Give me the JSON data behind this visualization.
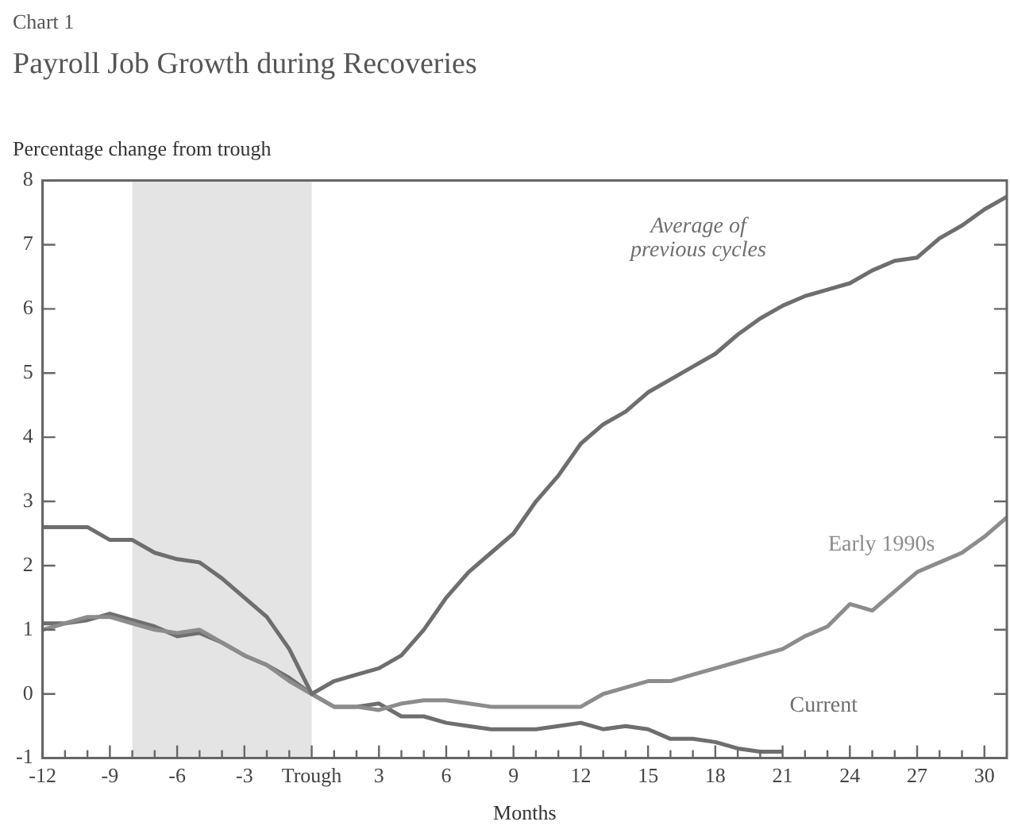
{
  "chart_data": {
    "type": "line",
    "title": "Payroll Job Growth during Recoveries",
    "annotations": [
      "Chart 1"
    ],
    "ylabel": "Percentage change from trough",
    "xlabel": "Months",
    "x": [
      -12,
      -11,
      -10,
      -9,
      -8,
      -7,
      -6,
      -5,
      -4,
      -3,
      -2,
      -1,
      0,
      1,
      2,
      3,
      4,
      5,
      6,
      7,
      8,
      9,
      10,
      11,
      12,
      13,
      14,
      15,
      16,
      17,
      18,
      19,
      20,
      21,
      22,
      23,
      24,
      25,
      26,
      27,
      28,
      29,
      30,
      31
    ],
    "series": [
      {
        "name": "Average of previous cycles",
        "color": "#6e6e6e",
        "values": [
          2.6,
          2.6,
          2.6,
          2.4,
          2.4,
          2.2,
          2.1,
          2.05,
          1.8,
          1.5,
          1.2,
          0.7,
          0,
          0.2,
          0.3,
          0.4,
          0.6,
          1.0,
          1.5,
          1.9,
          2.2,
          2.5,
          3.0,
          3.4,
          3.9,
          4.2,
          4.4,
          4.7,
          4.9,
          5.1,
          5.3,
          5.6,
          5.85,
          6.05,
          6.2,
          6.3,
          6.4,
          6.6,
          6.75,
          6.8,
          7.1,
          7.3,
          7.55,
          7.75
        ]
      },
      {
        "name": "Early 1990s",
        "color": "#8c8c8c",
        "values": [
          1.0,
          1.1,
          1.2,
          1.2,
          1.1,
          1.0,
          0.95,
          1.0,
          0.8,
          0.6,
          0.45,
          0.2,
          0,
          -0.2,
          -0.2,
          -0.25,
          -0.15,
          -0.1,
          -0.1,
          -0.15,
          -0.2,
          -0.2,
          -0.2,
          -0.2,
          -0.2,
          0,
          0.1,
          0.2,
          0.2,
          0.3,
          0.4,
          0.5,
          0.6,
          0.7,
          0.9,
          1.05,
          1.4,
          1.3,
          1.6,
          1.9,
          2.05,
          2.2,
          2.45,
          2.75
        ]
      },
      {
        "name": "Current",
        "color": "#6e6e6e",
        "values": [
          1.1,
          1.1,
          1.15,
          1.25,
          1.15,
          1.05,
          0.9,
          0.95,
          0.8,
          0.6,
          0.45,
          0.25,
          0,
          -0.2,
          -0.2,
          -0.15,
          -0.35,
          -0.35,
          -0.45,
          -0.5,
          -0.55,
          -0.55,
          -0.55,
          -0.5,
          -0.45,
          -0.55,
          -0.5,
          -0.55,
          -0.7,
          -0.7,
          -0.75,
          -0.85,
          -0.9,
          -0.9,
          null,
          null,
          null,
          null,
          null,
          null,
          null,
          null,
          null,
          null
        ]
      }
    ],
    "xlim": [
      -12,
      31
    ],
    "xticks": [
      -12,
      {
        "value": -11,
        "label": null
      },
      {
        "value": -10,
        "label": null
      },
      -9,
      {
        "value": -8,
        "label": null
      },
      {
        "value": -7,
        "label": null
      },
      -6,
      {
        "value": -5,
        "label": null
      },
      {
        "value": -4,
        "label": null
      },
      -3,
      {
        "value": -2,
        "label": null
      },
      {
        "value": -1,
        "label": null
      },
      {
        "value": 0,
        "label": "Trough"
      },
      {
        "value": 1,
        "label": null
      },
      {
        "value": 2,
        "label": null
      },
      3,
      {
        "value": 4,
        "label": null
      },
      {
        "value": 5,
        "label": null
      },
      6,
      {
        "value": 7,
        "label": null
      },
      {
        "value": 8,
        "label": null
      },
      9,
      {
        "value": 10,
        "label": null
      },
      {
        "value": 11,
        "label": null
      },
      12,
      {
        "value": 13,
        "label": null
      },
      {
        "value": 14,
        "label": null
      },
      15,
      {
        "value": 16,
        "label": null
      },
      {
        "value": 17,
        "label": null
      },
      18,
      {
        "value": 19,
        "label": null
      },
      {
        "value": 20,
        "label": null
      },
      21,
      {
        "value": 22,
        "label": null
      },
      {
        "value": 23,
        "label": null
      },
      24,
      {
        "value": 25,
        "label": null
      },
      {
        "value": 26,
        "label": null
      },
      27,
      {
        "value": 28,
        "label": null
      },
      {
        "value": 29,
        "label": null
      },
      30
    ],
    "ylim": [
      -1,
      8
    ],
    "yticks": [
      -1,
      0,
      1,
      2,
      3,
      4,
      5,
      6,
      7,
      8
    ],
    "bands": [
      {
        "axis": "x",
        "from": -8,
        "to": 0,
        "color": "#e4e4e4"
      }
    ]
  }
}
